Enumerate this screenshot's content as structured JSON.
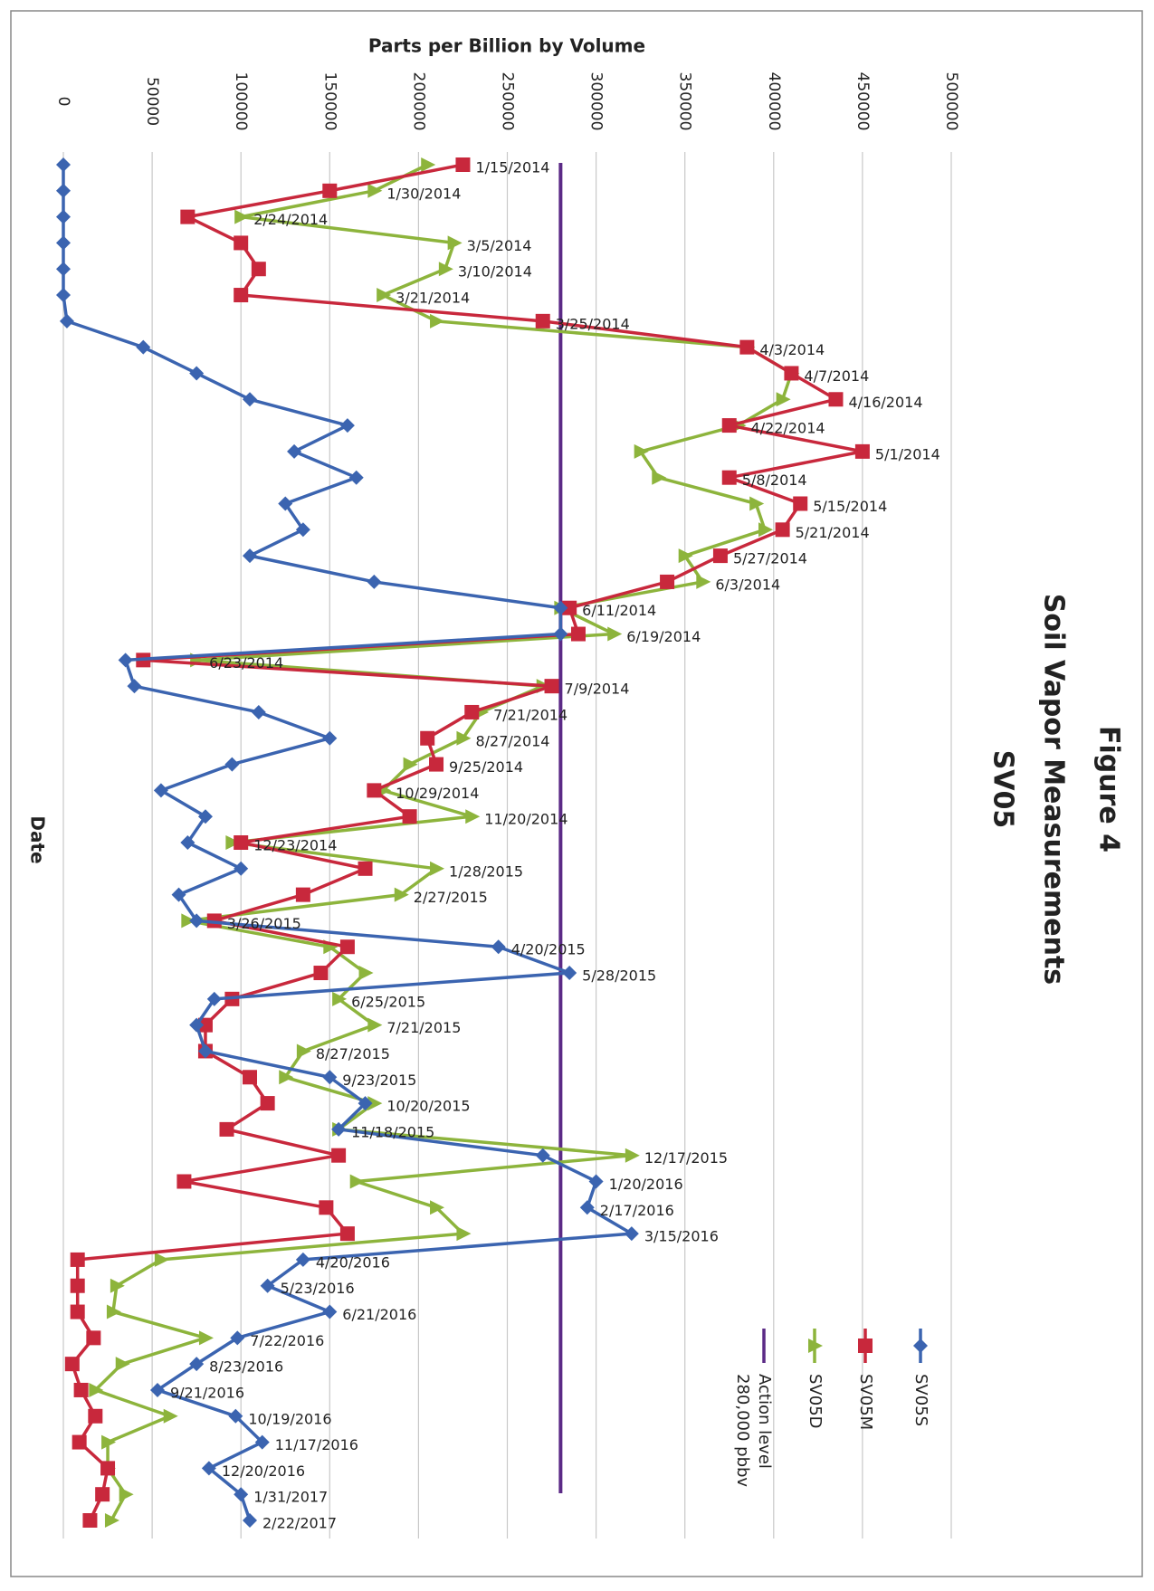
{
  "chart_data": {
    "type": "line",
    "title_lines": [
      "Figure 4",
      "Soil Vapor Measurements",
      "SV05"
    ],
    "x_label": "Date",
    "y_label": "Parts per Billion by Volume",
    "categories": [
      "1/15/2014",
      "1/30/2014",
      "2/24/2014",
      "3/5/2014",
      "3/10/2014",
      "3/21/2014",
      "3/25/2014",
      "4/3/2014",
      "4/7/2014",
      "4/16/2014",
      "4/22/2014",
      "5/1/2014",
      "5/8/2014",
      "5/15/2014",
      "5/21/2014",
      "5/27/2014",
      "6/3/2014",
      "6/11/2014",
      "6/19/2014",
      "6/23/2014",
      "7/9/2014",
      "7/21/2014",
      "8/27/2014",
      "9/25/2014",
      "10/29/2014",
      "11/20/2014",
      "12/23/2014",
      "1/28/2015",
      "2/27/2015",
      "3/26/2015",
      "4/20/2015",
      "5/28/2015",
      "6/25/2015",
      "7/21/2015",
      "8/27/2015",
      "9/23/2015",
      "10/20/2015",
      "11/18/2015",
      "12/17/2015",
      "1/20/2016",
      "2/17/2016",
      "3/15/2016",
      "4/20/2016",
      "5/23/2016",
      "6/21/2016",
      "7/22/2016",
      "8/23/2016",
      "9/21/2016",
      "10/19/2016",
      "11/17/2016",
      "12/20/2016",
      "1/31/2017",
      "2/22/2017"
    ],
    "series": [
      {
        "name": "SV05S",
        "color": "#3b64b0",
        "marker": "diamond",
        "values": [
          0,
          0,
          0,
          0,
          0,
          0,
          2000,
          45000,
          75000,
          105000,
          160000,
          130000,
          165000,
          125000,
          135000,
          105000,
          175000,
          280000,
          280000,
          35000,
          40000,
          110000,
          150000,
          95000,
          55000,
          80000,
          70000,
          100000,
          65000,
          75000,
          245000,
          285000,
          85000,
          75000,
          80000,
          150000,
          170000,
          155000,
          270000,
          300000,
          295000,
          320000,
          135000,
          115000,
          150000,
          98000,
          75000,
          53000,
          97000,
          112000,
          82000,
          100000,
          105000
        ]
      },
      {
        "name": "SV05M",
        "color": "#c8283c",
        "marker": "square",
        "values": [
          225000,
          150000,
          70000,
          100000,
          110000,
          100000,
          270000,
          385000,
          410000,
          435000,
          375000,
          450000,
          375000,
          415000,
          405000,
          370000,
          340000,
          285000,
          290000,
          45000,
          275000,
          230000,
          205000,
          210000,
          175000,
          195000,
          100000,
          170000,
          135000,
          85000,
          160000,
          145000,
          95000,
          80000,
          80000,
          105000,
          115000,
          92000,
          155000,
          68000,
          148000,
          160000,
          8000,
          8000,
          8000,
          17000,
          5000,
          10000,
          18000,
          9000,
          25000,
          22000,
          15000
        ]
      },
      {
        "name": "SV05D",
        "color": "#8db43c",
        "marker": "triangle",
        "values": [
          205000,
          175000,
          100000,
          220000,
          215000,
          180000,
          210000,
          385000,
          410000,
          405000,
          380000,
          325000,
          335000,
          390000,
          395000,
          350000,
          360000,
          280000,
          310000,
          75000,
          270000,
          235000,
          225000,
          195000,
          180000,
          230000,
          95000,
          210000,
          190000,
          70000,
          150000,
          170000,
          155000,
          175000,
          135000,
          125000,
          175000,
          155000,
          320000,
          165000,
          210000,
          225000,
          55000,
          30000,
          28000,
          80000,
          33000,
          18000,
          60000,
          25000,
          25000,
          35000,
          27000
        ]
      }
    ],
    "reference_line": {
      "name": "Action level",
      "label": "280,000 pbbv",
      "value": 280000,
      "color": "#5b2a86"
    },
    "ylim": [
      0,
      500000
    ],
    "yticks": [
      0,
      50000,
      100000,
      150000,
      200000,
      250000,
      300000,
      350000,
      400000,
      450000,
      500000
    ],
    "grid": true
  }
}
